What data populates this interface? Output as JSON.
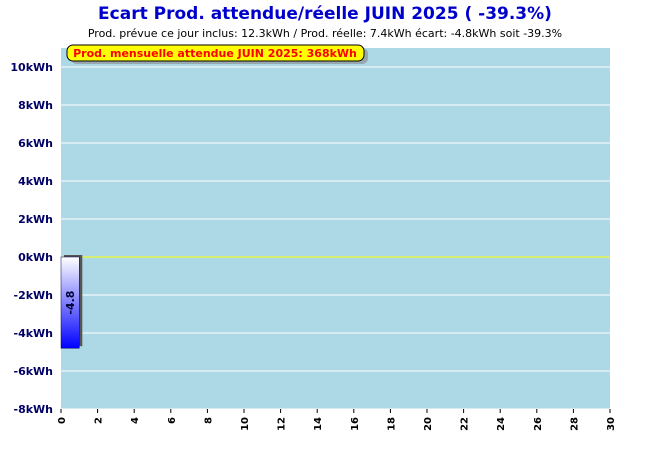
{
  "chart_data": {
    "type": "bar",
    "title": "Ecart Prod. attendue/réelle JUIN 2025 ( -39.3%)",
    "subtitle": "Prod. prévue ce jour inclus: 12.3kWh / Prod. réelle: 7.4kWh écart: -4.8kWh soit -39.3%",
    "annotation": "Prod. mensuelle attendue JUIN 2025: 368kWh",
    "ylim": [
      -8,
      11
    ],
    "yticks": [
      -8,
      -6,
      -4,
      -2,
      0,
      2,
      4,
      6,
      8,
      10
    ],
    "ytick_labels": [
      "-8kWh",
      "-6kWh",
      "-4kWh",
      "-2kWh",
      "0kWh",
      "2kWh",
      "4kWh",
      "6kWh",
      "8kWh",
      "10kWh"
    ],
    "xlim": [
      0,
      30
    ],
    "xticks": [
      0,
      2,
      4,
      6,
      8,
      10,
      12,
      14,
      16,
      18,
      20,
      22,
      24,
      26,
      28,
      30
    ],
    "xtick_labels": [
      "0",
      "2",
      "4",
      "6",
      "8",
      "10",
      "12",
      "14",
      "16",
      "18",
      "20",
      "22",
      "24",
      "26",
      "28",
      "30"
    ],
    "bars": [
      {
        "x": 0.5,
        "value": -4.8,
        "label": "-4.8"
      }
    ],
    "grid": true,
    "colors": {
      "plot_background": "#add8e6",
      "grid": "#ffffff",
      "zero_line": "#ffff00",
      "bar_top": "#ffffff",
      "bar_bottom": "#0000ff",
      "title": "#0000cc",
      "banner_fill": "#ffff00"
    }
  }
}
